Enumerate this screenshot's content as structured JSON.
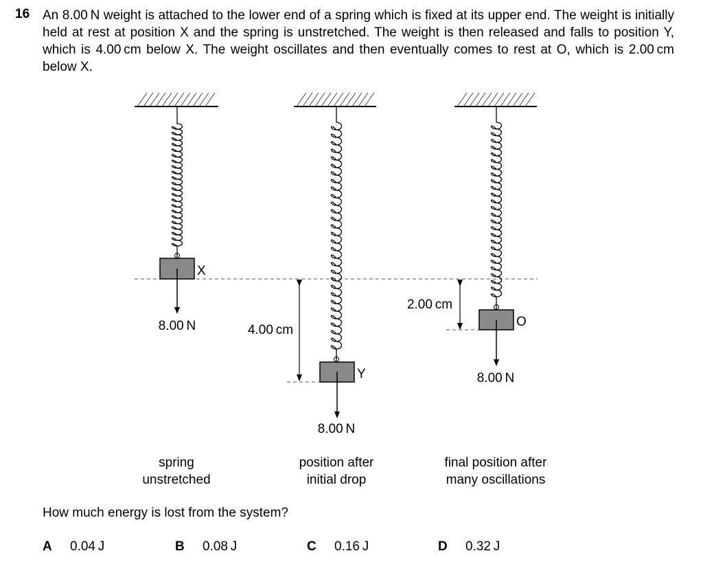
{
  "question": {
    "number": "16",
    "stem": "An 8.00 N weight is attached to the lower end of a spring which is fixed at its upper end. The weight is initially held at rest at position X and the spring is unstretched. The weight is then released and falls to position Y, which is 4.00 cm below X. The weight oscillates and then eventually comes to rest at O, which is 2.00 cm below X.",
    "prompt": "How much energy is lost from the system?"
  },
  "diagram": {
    "panel1": {
      "weight_label": "8.00 N",
      "position_label": "X",
      "caption_line1": "spring",
      "caption_line2": "unstretched"
    },
    "panel2": {
      "weight_label": "8.00 N",
      "position_label": "Y",
      "distance_label": "4.00 cm",
      "caption_line1": "position after",
      "caption_line2": "initial drop"
    },
    "panel3": {
      "weight_label": "8.00 N",
      "position_label": "O",
      "distance_label": "2.00 cm",
      "caption_line1": "final position after",
      "caption_line2": "many oscillations"
    }
  },
  "options": [
    {
      "letter": "A",
      "text": "0.04 J"
    },
    {
      "letter": "B",
      "text": "0.08 J"
    },
    {
      "letter": "C",
      "text": "0.16 J"
    },
    {
      "letter": "D",
      "text": "0.32 J"
    }
  ]
}
